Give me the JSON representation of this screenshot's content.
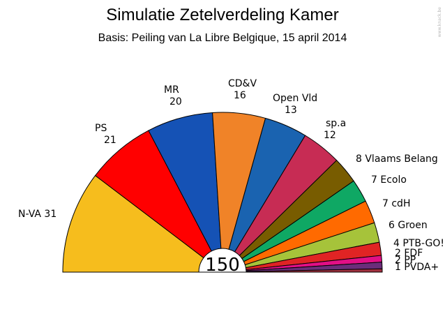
{
  "chart_data": {
    "type": "pie",
    "title": "Simulatie Zetelverdeling Kamer",
    "subtitle": "Basis: Peiling van La Libre Belgique, 15 april 2014",
    "total_label": "150",
    "watermark": "www.knack.be",
    "series": [
      {
        "party": "N-VA",
        "seats": 31,
        "color": "#f6bd1d",
        "label": "N-VA 31"
      },
      {
        "party": "PS",
        "seats": 21,
        "color": "#ff0000",
        "label": "PS\n21"
      },
      {
        "party": "MR",
        "seats": 20,
        "color": "#1552b5",
        "label": "MR\n20"
      },
      {
        "party": "CD&V",
        "seats": 16,
        "color": "#f08328",
        "label": "CD&V\n16"
      },
      {
        "party": "Open Vld",
        "seats": 13,
        "color": "#1a63b0",
        "label": "Open Vld\n13"
      },
      {
        "party": "sp.a",
        "seats": 12,
        "color": "#c72c54",
        "label": "sp.a\n12"
      },
      {
        "party": "Vlaams Belang",
        "seats": 8,
        "color": "#785c00",
        "label": "8 Vlaams Belang"
      },
      {
        "party": "Ecolo",
        "seats": 7,
        "color": "#0fa864",
        "label": "7 Ecolo"
      },
      {
        "party": "cdH",
        "seats": 7,
        "color": "#ff6a00",
        "label": "7 cdH"
      },
      {
        "party": "Groen",
        "seats": 6,
        "color": "#a6c33a",
        "label": "6 Groen"
      },
      {
        "party": "PTB-GO!",
        "seats": 4,
        "color": "#e02424",
        "label": "4 PTB-GO!"
      },
      {
        "party": "FDF",
        "seats": 2,
        "color": "#e20f86",
        "label": "2 FDF"
      },
      {
        "party": "PP",
        "seats": 2,
        "color": "#6b2d7a",
        "label": "2 PP"
      },
      {
        "party": "PVDA+",
        "seats": 1,
        "color": "#a0303e",
        "label": "1 PVDA+"
      }
    ]
  }
}
